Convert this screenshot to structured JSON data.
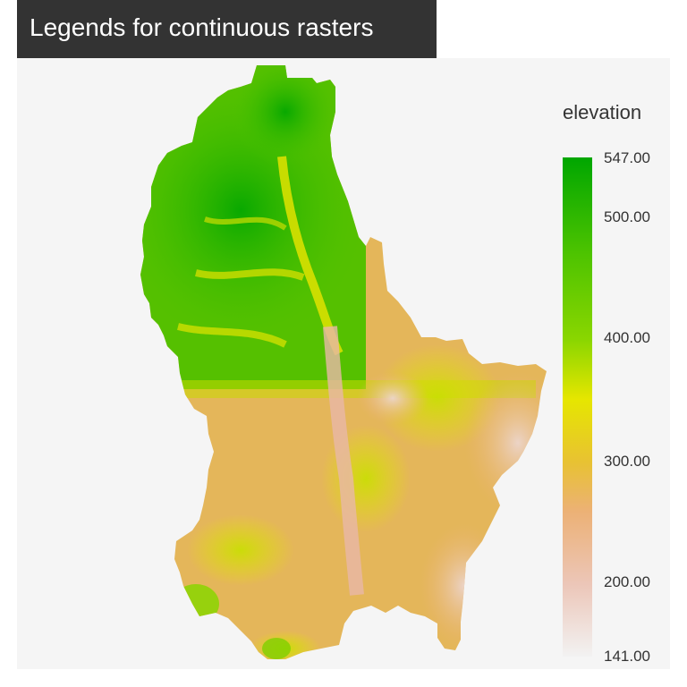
{
  "title": "Legends for continuous rasters",
  "legend": {
    "title": "elevation",
    "labels": {
      "v547": "547.00",
      "v500": "500.00",
      "v400": "400.00",
      "v300": "300.00",
      "v200": "200.00",
      "v141": "141.00"
    },
    "min": 141,
    "max": 547,
    "color_stops": [
      {
        "value": 141,
        "color": "#f2f2f2"
      },
      {
        "value": 200,
        "color": "#ecc6b8"
      },
      {
        "value": 260,
        "color": "#ecb176"
      },
      {
        "value": 300,
        "color": "#e8c232"
      },
      {
        "value": 350,
        "color": "#e6e600"
      },
      {
        "value": 400,
        "color": "#8ad600"
      },
      {
        "value": 470,
        "color": "#4cc300"
      },
      {
        "value": 547,
        "color": "#00a600"
      }
    ]
  },
  "colors": {
    "title_background": "#333333",
    "panel_background": "#f5f5f5",
    "text": "#333333"
  }
}
